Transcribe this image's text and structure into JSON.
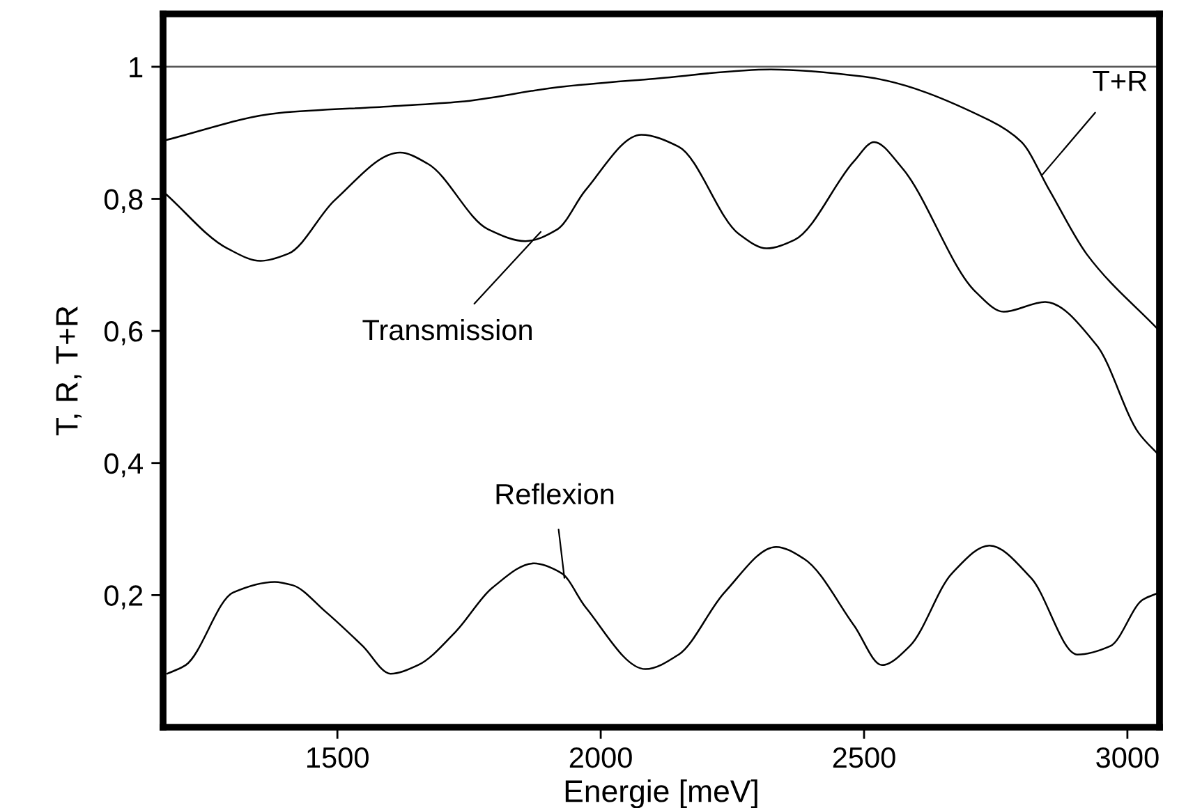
{
  "chart_data": {
    "type": "line",
    "xlabel": "Energie [meV]",
    "ylabel": "T, R, T+R",
    "xlim": [
      1169,
      3061
    ],
    "ylim": [
      0,
      1.08
    ],
    "xticks": [
      1500,
      2000,
      2500,
      3000
    ],
    "yticks": [
      {
        "value": 0.2,
        "label": "0,2"
      },
      {
        "value": 0.4,
        "label": "0,4"
      },
      {
        "value": 0.6,
        "label": "0,6"
      },
      {
        "value": 0.8,
        "label": "0,8"
      },
      1
    ],
    "grid": false,
    "legend": false,
    "marker": "none",
    "line_style": "solid",
    "series": [
      {
        "color": "#000000",
        "x": [
          1169,
          1389,
          1601,
          1733,
          1918,
          2103,
          2323,
          2500,
          2738,
          2799,
          2852,
          2923,
          3061
        ],
        "values": [
          0.888,
          0.93,
          0.94,
          0.947,
          0.969,
          0.982,
          0.996,
          0.985,
          0.919,
          0.886,
          0.813,
          0.716,
          0.6
        ]
      },
      {
        "color": "#000000",
        "x": [
          1172,
          1291,
          1354,
          1407,
          1495,
          1619,
          1672,
          1786,
          1857,
          1918,
          1971,
          2077,
          2148,
          2262,
          2315,
          2368,
          2481,
          2519,
          2571,
          2712,
          2765,
          2844,
          2942,
          3021,
          3061
        ],
        "values": [
          0.809,
          0.725,
          0.706,
          0.717,
          0.798,
          0.87,
          0.853,
          0.754,
          0.736,
          0.754,
          0.813,
          0.897,
          0.879,
          0.747,
          0.725,
          0.738,
          0.857,
          0.886,
          0.848,
          0.659,
          0.629,
          0.644,
          0.578,
          0.446,
          0.411
        ]
      },
      {
        "color": "#000000",
        "x": [
          1177,
          1212,
          1302,
          1381,
          1415,
          1476,
          1548,
          1601,
          1653,
          1725,
          1794,
          1873,
          1926,
          1971,
          2085,
          2148,
          2235,
          2333,
          2386,
          2481,
          2534,
          2587,
          2667,
          2738,
          2817,
          2905,
          2968,
          3029,
          3061
        ],
        "values": [
          0.081,
          0.094,
          0.204,
          0.22,
          0.215,
          0.176,
          0.123,
          0.081,
          0.094,
          0.145,
          0.211,
          0.248,
          0.233,
          0.182,
          0.088,
          0.11,
          0.204,
          0.273,
          0.255,
          0.154,
          0.094,
          0.123,
          0.233,
          0.275,
          0.226,
          0.11,
          0.123,
          0.193,
          0.204
        ]
      }
    ],
    "ref_lines": [
      {
        "axis": "y",
        "value": 1,
        "color": "#555555"
      }
    ],
    "annotations": [
      {
        "text": "T+R",
        "x": 2839,
        "y": 0.837
      },
      {
        "text": "Transmission",
        "x": 1886,
        "y": 0.75
      },
      {
        "text": "Reflexion",
        "x": 1931,
        "y": 0.226
      }
    ]
  }
}
